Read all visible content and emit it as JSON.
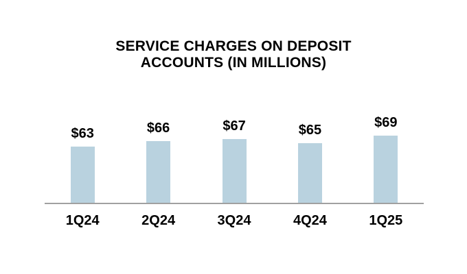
{
  "chart_data": {
    "type": "bar",
    "title": "SERVICE CHARGES ON DEPOSIT ACCOUNTS (IN MILLIONS)",
    "categories": [
      "1Q24",
      "2Q24",
      "3Q24",
      "4Q24",
      "1Q25"
    ],
    "values": [
      63,
      66,
      67,
      65,
      69
    ],
    "value_labels": [
      "$63",
      "$66",
      "$67",
      "$65",
      "$69"
    ],
    "xlabel": "",
    "ylabel": "",
    "ylim": [
      32,
      70
    ],
    "grid": false,
    "legend": false,
    "y_axis_visible": false,
    "bar_color": "#b9d2df",
    "axis_line_color": "#a0a0a0",
    "text_color": "#000000",
    "background_color": "#ffffff"
  }
}
